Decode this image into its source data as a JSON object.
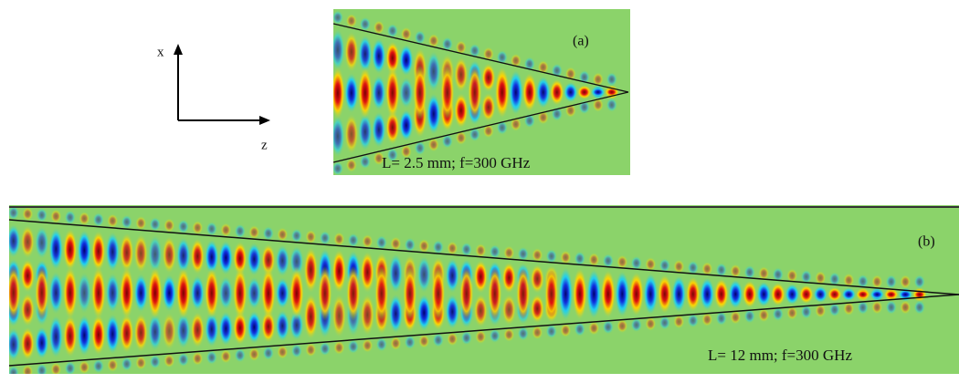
{
  "axes": {
    "x_label": "x",
    "z_label": "z"
  },
  "panels": [
    {
      "tag": "(a)",
      "caption": "L= 2.5 mm; f=300 GHz"
    },
    {
      "tag": "(b)",
      "caption": "L= 12 mm; f=300 GHz"
    }
  ]
}
